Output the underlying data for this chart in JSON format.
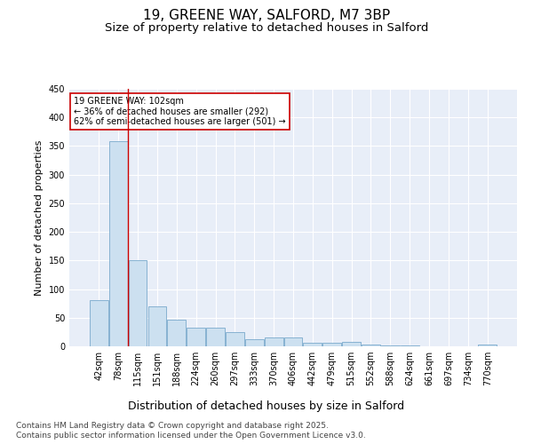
{
  "title1": "19, GREENE WAY, SALFORD, M7 3BP",
  "title2": "Size of property relative to detached houses in Salford",
  "xlabel": "Distribution of detached houses by size in Salford",
  "ylabel": "Number of detached properties",
  "categories": [
    "42sqm",
    "78sqm",
    "115sqm",
    "151sqm",
    "188sqm",
    "224sqm",
    "260sqm",
    "297sqm",
    "333sqm",
    "370sqm",
    "406sqm",
    "442sqm",
    "479sqm",
    "515sqm",
    "552sqm",
    "588sqm",
    "624sqm",
    "661sqm",
    "697sqm",
    "734sqm",
    "770sqm"
  ],
  "values": [
    80,
    358,
    150,
    70,
    47,
    32,
    32,
    25,
    12,
    15,
    15,
    6,
    6,
    7,
    3,
    1,
    1,
    0,
    0,
    0,
    3
  ],
  "bar_color": "#cce0f0",
  "bar_edge_color": "#7aaacc",
  "marker_color": "#cc0000",
  "annotation_text": "19 GREENE WAY: 102sqm\n← 36% of detached houses are smaller (292)\n62% of semi-detached houses are larger (501) →",
  "annotation_box_color": "#ffffff",
  "annotation_box_edge": "#cc0000",
  "ylim": [
    0,
    450
  ],
  "yticks": [
    0,
    50,
    100,
    150,
    200,
    250,
    300,
    350,
    400,
    450
  ],
  "background_color": "#e8eef8",
  "footer_text": "Contains HM Land Registry data © Crown copyright and database right 2025.\nContains public sector information licensed under the Open Government Licence v3.0.",
  "title1_fontsize": 11,
  "title2_fontsize": 9.5,
  "xlabel_fontsize": 9,
  "ylabel_fontsize": 8,
  "tick_fontsize": 7,
  "footer_fontsize": 6.5
}
